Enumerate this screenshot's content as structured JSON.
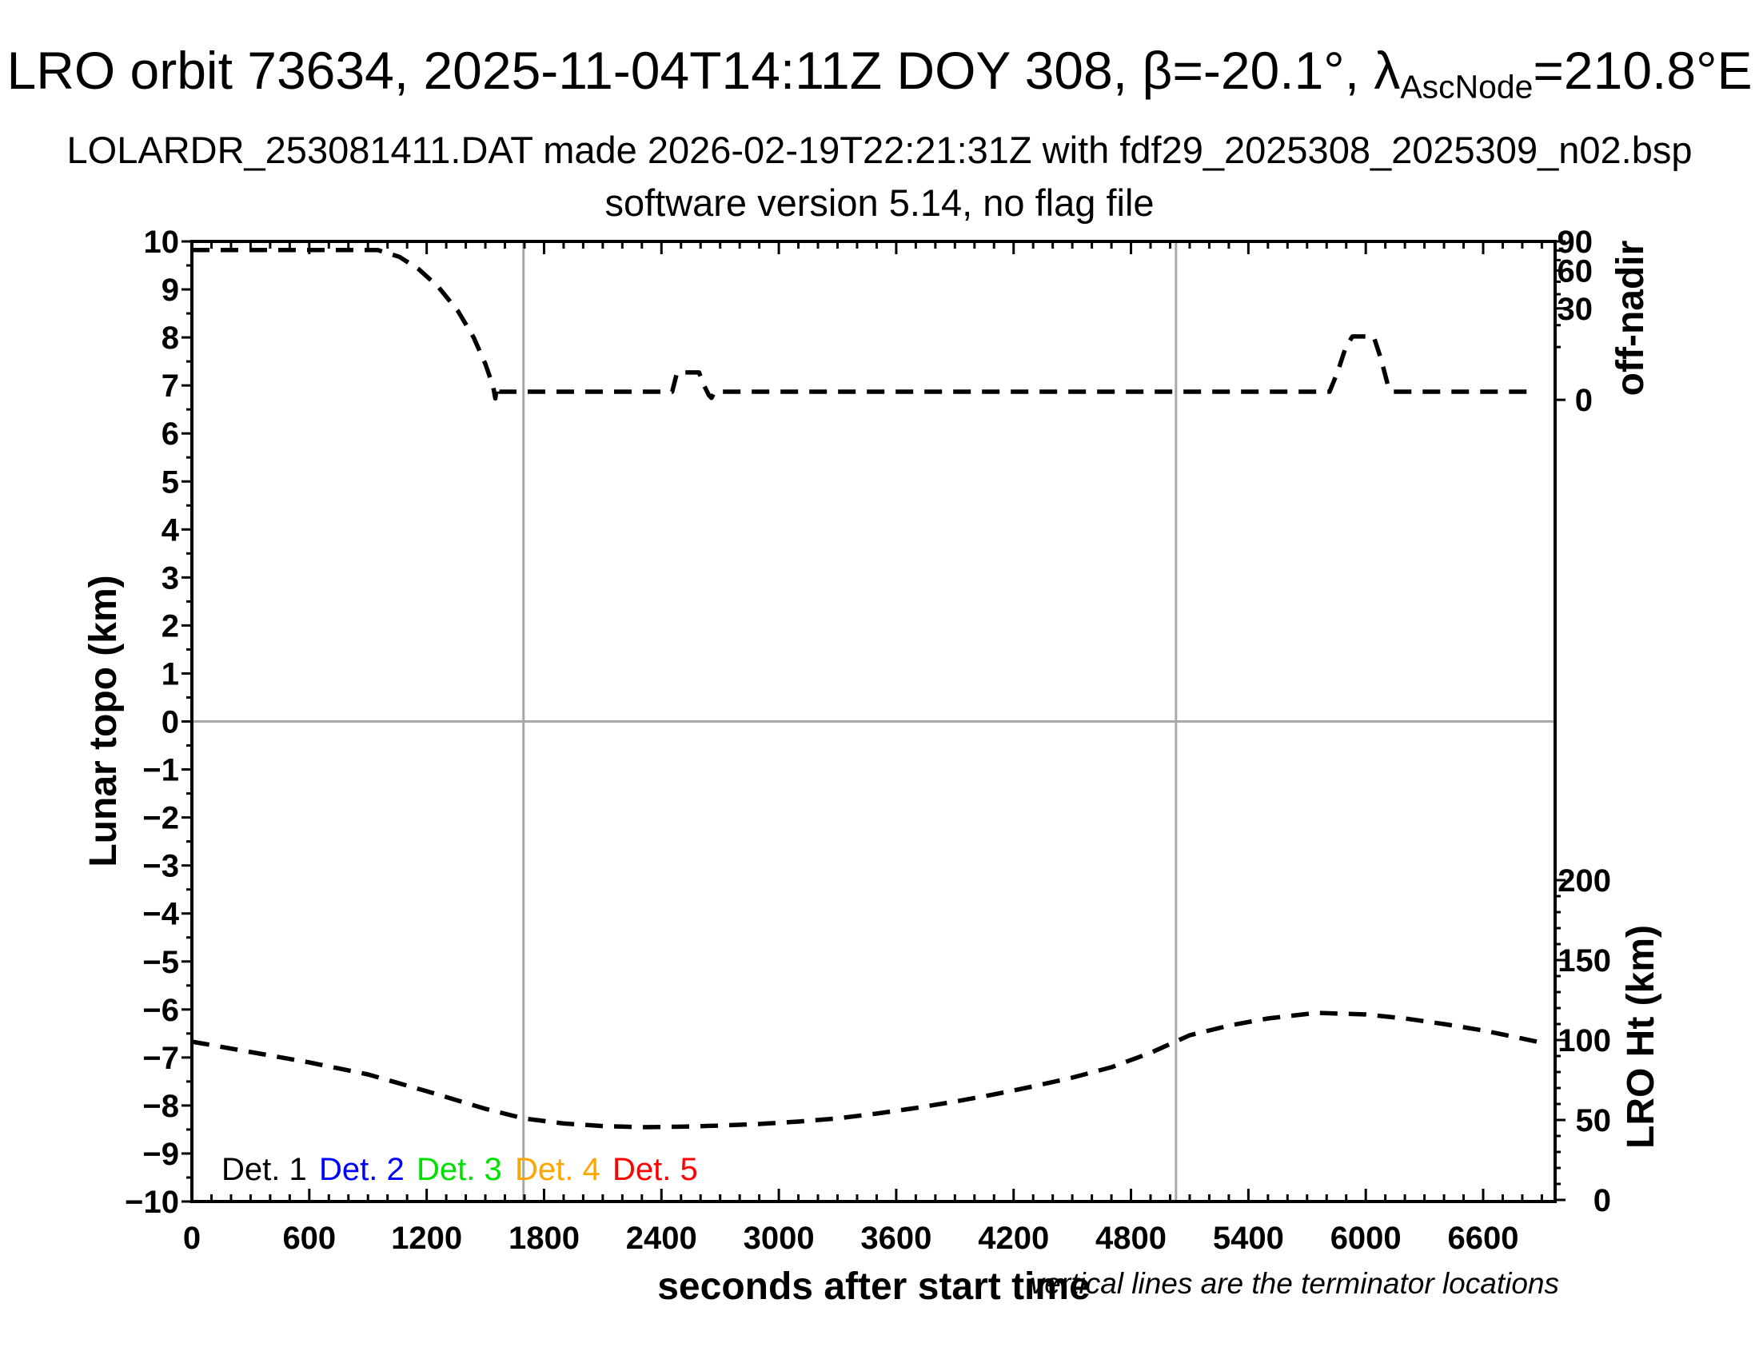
{
  "figure": {
    "title": {
      "part1": "LRO orbit 73634, 2025-11-04T14:11Z DOY 308, β=-20.1°, λ",
      "subscript": "AscNode",
      "part2": "=210.8°E"
    },
    "subtitle1": "LOLARDR_253081411.DAT made 2026-02-19T22:21:31Z with fdf29_2025308_2025309_n02.bsp",
    "subtitle2": "software version 5.14, no flag file",
    "note": "vertical lines are the terminator locations"
  },
  "chart_data": {
    "type": "line",
    "xlabel": "seconds after start time",
    "ylabel_left": "Lunar topo (km)",
    "ylabel_right_top": "off-nadir",
    "ylabel_right_bottom": "LRO Ht (km)",
    "x_axis": {
      "min": 0,
      "max": 6968,
      "major_tick_step": 600,
      "minor_tick_step": 100,
      "tick_labels": [
        "0",
        "600",
        "1200",
        "1800",
        "2400",
        "3000",
        "3600",
        "4200",
        "4800",
        "5400",
        "6000",
        "6600"
      ]
    },
    "y_left_axis": {
      "min": -10,
      "max": 10,
      "major_tick_step": 1,
      "minor_tick_step": 0.5,
      "tick_labels": [
        "10",
        "9",
        "8",
        "7",
        "6",
        "5",
        "4",
        "3",
        "2",
        "1",
        "0",
        "−1",
        "−2",
        "−3",
        "−4",
        "−5",
        "−6",
        "−7",
        "−8",
        "−9",
        "−10"
      ]
    },
    "off_nadir_axis": {
      "scale": "sqrt",
      "unit": "degrees",
      "ticks_deg": [
        90,
        60,
        30,
        0
      ],
      "labels": [
        "90",
        "60",
        "30",
        "0"
      ],
      "minor_ticks_deg": [
        80,
        70,
        50,
        40,
        20,
        10
      ]
    },
    "lro_ht_axis": {
      "unit": "km",
      "ticks_km": [
        200,
        150,
        100,
        50,
        0
      ],
      "labels": [
        "200",
        "150",
        "100",
        "50",
        "0"
      ],
      "minor_step_km": 10
    },
    "terminator_lines_sec": [
      1695,
      5030
    ],
    "series": [
      {
        "name": "off-nadir angle",
        "axis": "off_nadir",
        "line_style": "dashed",
        "color": "#000000",
        "points_topo_units": [
          [
            0,
            9.82
          ],
          [
            950,
            9.82
          ],
          [
            1060,
            9.68
          ],
          [
            1160,
            9.42
          ],
          [
            1260,
            9.05
          ],
          [
            1360,
            8.55
          ],
          [
            1440,
            8.0
          ],
          [
            1500,
            7.45
          ],
          [
            1540,
            6.98
          ],
          [
            1551,
            6.73
          ],
          [
            1560,
            6.99
          ],
          [
            1572,
            6.87
          ],
          [
            2455,
            6.87
          ],
          [
            2468,
            7.08
          ],
          [
            2480,
            7.27
          ],
          [
            2592,
            7.27
          ],
          [
            2615,
            7.02
          ],
          [
            2642,
            6.8
          ],
          [
            2656,
            6.74
          ],
          [
            2672,
            6.87
          ],
          [
            5815,
            6.87
          ],
          [
            5858,
            7.3
          ],
          [
            5898,
            7.8
          ],
          [
            5932,
            8.02
          ],
          [
            6040,
            8.02
          ],
          [
            6078,
            7.55
          ],
          [
            6112,
            7.02
          ],
          [
            6132,
            6.87
          ],
          [
            6850,
            6.87
          ]
        ],
        "approx_readings_deg": {
          "initial_plateau": 80,
          "baseline": 0.3,
          "bump_2500s_peak": 2.7,
          "bump_6000s_peak": 14
        }
      },
      {
        "name": "LRO height",
        "axis": "lro_ht",
        "line_style": "dashed",
        "color": "#000000",
        "points_km": [
          [
            0,
            99
          ],
          [
            300,
            92.5
          ],
          [
            600,
            86
          ],
          [
            900,
            78.5
          ],
          [
            1200,
            68
          ],
          [
            1500,
            57
          ],
          [
            1695,
            51
          ],
          [
            1900,
            47.8
          ],
          [
            2100,
            46.2
          ],
          [
            2300,
            45.5
          ],
          [
            2500,
            45.8
          ],
          [
            2700,
            46.5
          ],
          [
            2900,
            47.5
          ],
          [
            3100,
            49
          ],
          [
            3300,
            51
          ],
          [
            3500,
            54
          ],
          [
            3700,
            57.5
          ],
          [
            3900,
            61.5
          ],
          [
            4100,
            66
          ],
          [
            4300,
            71
          ],
          [
            4500,
            76.5
          ],
          [
            4700,
            83
          ],
          [
            4900,
            92
          ],
          [
            5100,
            103
          ],
          [
            5300,
            109
          ],
          [
            5500,
            113.5
          ],
          [
            5750,
            117
          ],
          [
            6000,
            116
          ],
          [
            6200,
            113.5
          ],
          [
            6400,
            110
          ],
          [
            6600,
            106
          ],
          [
            6875,
            99
          ]
        ]
      }
    ],
    "legend": [
      {
        "label": "Det. 1",
        "color": "#000000"
      },
      {
        "label": "Det. 2",
        "color": "#0000ff"
      },
      {
        "label": "Det. 3",
        "color": "#00e000"
      },
      {
        "label": "Det. 4",
        "color": "#ffa500"
      },
      {
        "label": "Det. 5",
        "color": "#ff0000"
      }
    ],
    "colors": {
      "curve": "#000000",
      "terminator_line": "#a8a8a8",
      "zero_line": "#a8a8a8",
      "frame": "#000000"
    }
  }
}
